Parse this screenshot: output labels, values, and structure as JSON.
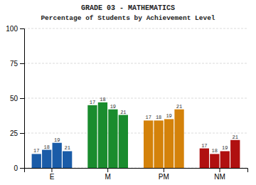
{
  "chart_data": {
    "type": "bar",
    "title": "GRADE 03 - MATHEMATICS",
    "subtitle": "Percentage of Students by Achievement Level",
    "categories": [
      "E",
      "M",
      "PM",
      "NM"
    ],
    "series": [
      {
        "name": "17",
        "values": [
          10,
          45,
          34,
          14
        ],
        "colors": [
          "#1a5ca8",
          "#1a8c2e",
          "#d4820a",
          "#b01010"
        ]
      },
      {
        "name": "18",
        "values": [
          13,
          47,
          34,
          10
        ],
        "colors": [
          "#1a5ca8",
          "#1a8c2e",
          "#d4820a",
          "#b01010"
        ]
      },
      {
        "name": "19",
        "values": [
          18,
          42,
          35,
          12
        ],
        "colors": [
          "#1a5ca8",
          "#1a8c2e",
          "#d4820a",
          "#b01010"
        ]
      },
      {
        "name": "21",
        "values": [
          12,
          38,
          42,
          20
        ],
        "colors": [
          "#1a5ca8",
          "#1a8c2e",
          "#d4820a",
          "#b01010"
        ]
      }
    ],
    "ylim": [
      0,
      100
    ],
    "yticks": [
      0,
      25,
      50,
      75,
      100
    ],
    "grid": true
  }
}
